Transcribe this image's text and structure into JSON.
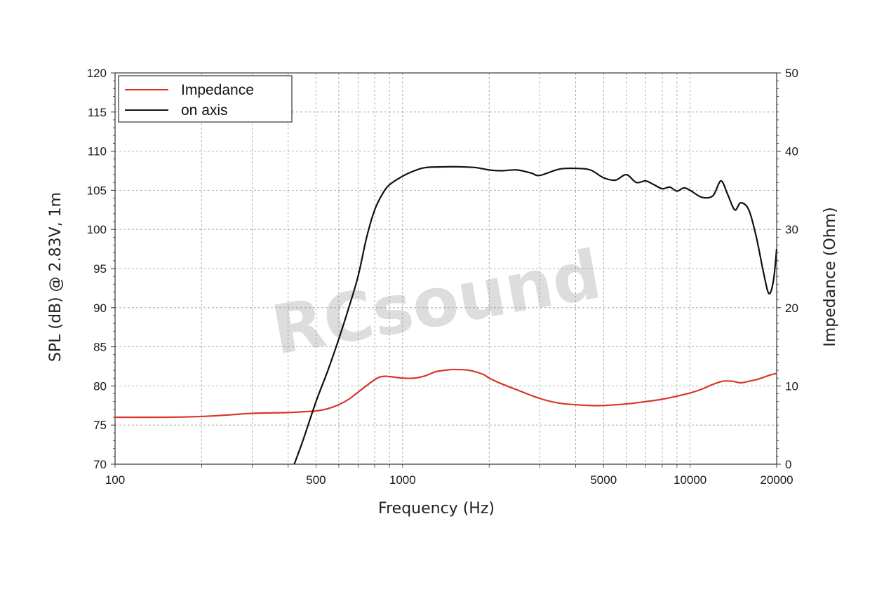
{
  "watermark": "RCsound",
  "chart_data": {
    "type": "line",
    "x_scale": "log",
    "xlim": [
      100,
      20000
    ],
    "ylim_left": [
      70,
      120
    ],
    "ylim_right": [
      0,
      50
    ],
    "xlabel": "Frequency (Hz)",
    "ylabel_left": "SPL (dB) @ 2.83V, 1m",
    "ylabel_right": "Impedance (Ohm)",
    "x_ticks": [
      100,
      500,
      1000,
      5000,
      10000,
      20000
    ],
    "y_ticks_left": [
      70,
      75,
      80,
      85,
      90,
      95,
      100,
      105,
      110,
      115,
      120
    ],
    "y_ticks_right": [
      0,
      10,
      20,
      30,
      40,
      50
    ],
    "grid": true,
    "legend_position": "top-left",
    "series": [
      {
        "name": "Impedance",
        "axis": "right",
        "color": "#d9352a",
        "points": [
          [
            100,
            6.0
          ],
          [
            150,
            6.0
          ],
          [
            200,
            6.1
          ],
          [
            250,
            6.3
          ],
          [
            300,
            6.5
          ],
          [
            400,
            6.6
          ],
          [
            450,
            6.7
          ],
          [
            500,
            6.8
          ],
          [
            550,
            7.1
          ],
          [
            600,
            7.6
          ],
          [
            650,
            8.3
          ],
          [
            700,
            9.2
          ],
          [
            800,
            10.8
          ],
          [
            850,
            11.2
          ],
          [
            900,
            11.2
          ],
          [
            1000,
            11.0
          ],
          [
            1100,
            11.0
          ],
          [
            1200,
            11.3
          ],
          [
            1300,
            11.8
          ],
          [
            1400,
            12.0
          ],
          [
            1500,
            12.1
          ],
          [
            1700,
            12.0
          ],
          [
            1900,
            11.5
          ],
          [
            2000,
            11.0
          ],
          [
            2200,
            10.3
          ],
          [
            2500,
            9.5
          ],
          [
            3000,
            8.4
          ],
          [
            3500,
            7.8
          ],
          [
            4000,
            7.6
          ],
          [
            4500,
            7.5
          ],
          [
            5000,
            7.5
          ],
          [
            6000,
            7.7
          ],
          [
            7000,
            8.0
          ],
          [
            8000,
            8.3
          ],
          [
            9000,
            8.7
          ],
          [
            10000,
            9.1
          ],
          [
            11000,
            9.6
          ],
          [
            12000,
            10.2
          ],
          [
            13000,
            10.6
          ],
          [
            14000,
            10.6
          ],
          [
            15000,
            10.4
          ],
          [
            16000,
            10.6
          ],
          [
            17000,
            10.8
          ],
          [
            18000,
            11.1
          ],
          [
            19000,
            11.4
          ],
          [
            20000,
            11.6
          ]
        ]
      },
      {
        "name": "on axis",
        "axis": "left",
        "color": "#111111",
        "points": [
          [
            420,
            70.0
          ],
          [
            450,
            73.0
          ],
          [
            500,
            78.0
          ],
          [
            550,
            82.0
          ],
          [
            600,
            86.0
          ],
          [
            650,
            90.0
          ],
          [
            700,
            94.0
          ],
          [
            750,
            99.0
          ],
          [
            800,
            102.5
          ],
          [
            850,
            104.5
          ],
          [
            900,
            105.7
          ],
          [
            1000,
            106.8
          ],
          [
            1100,
            107.5
          ],
          [
            1200,
            107.9
          ],
          [
            1400,
            108.0
          ],
          [
            1600,
            108.0
          ],
          [
            1800,
            107.9
          ],
          [
            2000,
            107.6
          ],
          [
            2200,
            107.5
          ],
          [
            2500,
            107.6
          ],
          [
            2800,
            107.2
          ],
          [
            3000,
            106.9
          ],
          [
            3500,
            107.7
          ],
          [
            4000,
            107.8
          ],
          [
            4500,
            107.6
          ],
          [
            5000,
            106.6
          ],
          [
            5500,
            106.3
          ],
          [
            6000,
            107.0
          ],
          [
            6500,
            106.0
          ],
          [
            7000,
            106.2
          ],
          [
            7500,
            105.7
          ],
          [
            8000,
            105.2
          ],
          [
            8500,
            105.4
          ],
          [
            9000,
            104.9
          ],
          [
            9500,
            105.3
          ],
          [
            10000,
            105.0
          ],
          [
            11000,
            104.1
          ],
          [
            12000,
            104.3
          ],
          [
            12800,
            106.2
          ],
          [
            13500,
            104.5
          ],
          [
            14300,
            102.5
          ],
          [
            15000,
            103.4
          ],
          [
            16000,
            102.5
          ],
          [
            17000,
            99.0
          ],
          [
            18000,
            94.5
          ],
          [
            18800,
            91.8
          ],
          [
            19500,
            93.5
          ],
          [
            20000,
            97.5
          ]
        ]
      }
    ]
  }
}
